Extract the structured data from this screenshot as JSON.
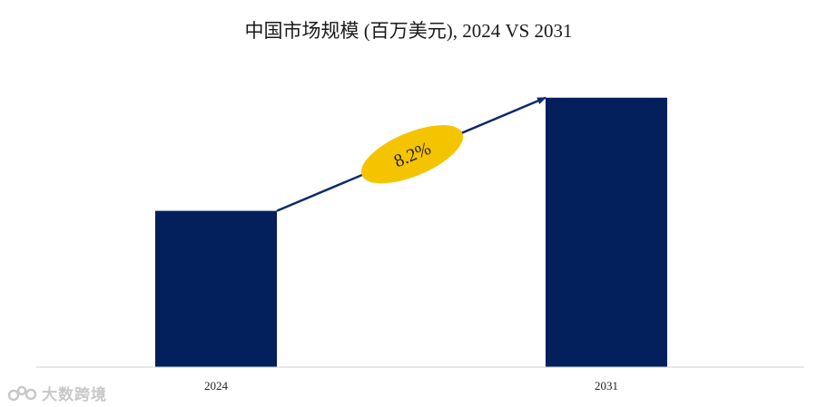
{
  "title": "中国市场规模 (百万美元), 2024 VS 2031",
  "colors": {
    "bar": "#03205c",
    "arrow": "#0d2a6b",
    "ellipse": "#f5c400",
    "axis": "#d0d0d0",
    "watermark": "#c8c8c8"
  },
  "chart_data": {
    "type": "bar",
    "title": "中国市场规模 (百万美元), 2024 VS 2031",
    "categories": [
      "2024",
      "2031"
    ],
    "values": [
      58,
      100
    ],
    "ylim": [
      0,
      108
    ],
    "grid": false,
    "legend": "none",
    "annotation": {
      "type": "growth-arrow",
      "from": "2024",
      "to": "2031",
      "label": "8.2%"
    }
  },
  "watermark": {
    "text": "大数跨境",
    "icon": "watermark-logo-icon"
  }
}
